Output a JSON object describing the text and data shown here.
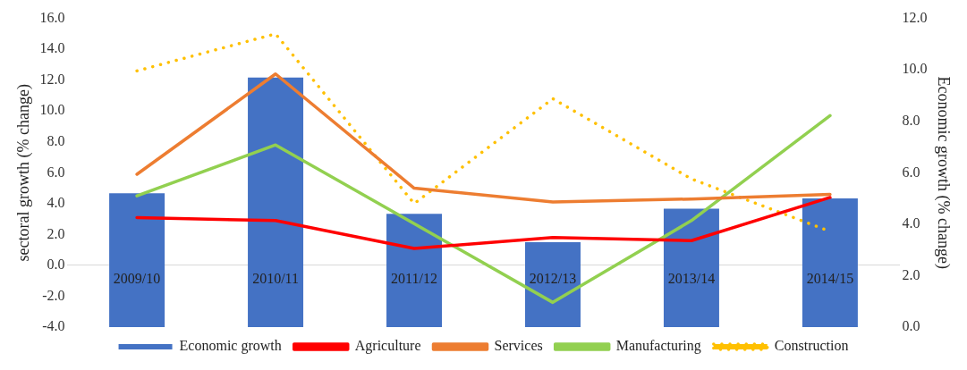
{
  "chart_data": {
    "type": "bar",
    "ylabel": "sectoral growth (% change)",
    "y2label": "Economic growth (% change)",
    "categories": [
      "2009/10",
      "2010/11",
      "2011/12",
      "2012/13",
      "2013/14",
      "2014/15"
    ],
    "series": [
      {
        "name": "Economic growth",
        "axis": "y2",
        "color": "#4472c4",
        "values": [
          5.2,
          9.7,
          4.4,
          3.3,
          4.6,
          5.0
        ]
      },
      {
        "name": "Agriculture",
        "type": "line",
        "color": "#ff0000",
        "values": [
          3.1,
          2.9,
          1.1,
          1.8,
          1.6,
          4.4
        ]
      },
      {
        "name": "Services",
        "type": "line",
        "color": "#ed7d31",
        "values": [
          5.9,
          12.4,
          5.0,
          4.1,
          4.3,
          4.6
        ]
      },
      {
        "name": "Manufacturing",
        "type": "line",
        "color": "#92d050",
        "values": [
          4.5,
          7.8,
          2.7,
          -2.4,
          2.9,
          9.7
        ]
      },
      {
        "name": "Construction",
        "type": "line",
        "color": "#ffc000",
        "line_style": "dotted",
        "values": [
          12.6,
          15.0,
          4.0,
          10.8,
          5.6,
          2.2
        ]
      }
    ],
    "ylim": [
      -4,
      16
    ],
    "yticks": [
      {
        "value": -4,
        "label": "-4.0"
      },
      {
        "value": -2,
        "label": "-2.0"
      },
      {
        "value": 0,
        "label": "0.0"
      },
      {
        "value": 2,
        "label": "2.0"
      },
      {
        "value": 4,
        "label": "4.0"
      },
      {
        "value": 6,
        "label": "6.0"
      },
      {
        "value": 8,
        "label": "8.0"
      },
      {
        "value": 10,
        "label": "10.0"
      },
      {
        "value": 12,
        "label": "12.0"
      },
      {
        "value": 14,
        "label": "14.0"
      },
      {
        "value": 16,
        "label": "16.0"
      }
    ],
    "y2lim": [
      0,
      12
    ],
    "y2ticks": [
      {
        "value": 0,
        "label": "0.0"
      },
      {
        "value": 2,
        "label": "2.0"
      },
      {
        "value": 4,
        "label": "4.0"
      },
      {
        "value": 6,
        "label": "6.0"
      },
      {
        "value": 8,
        "label": "8.0"
      },
      {
        "value": 10,
        "label": "10.0"
      },
      {
        "value": 12,
        "label": "12.0"
      }
    ],
    "grid": false,
    "legend": "bottom",
    "marker": "none"
  }
}
